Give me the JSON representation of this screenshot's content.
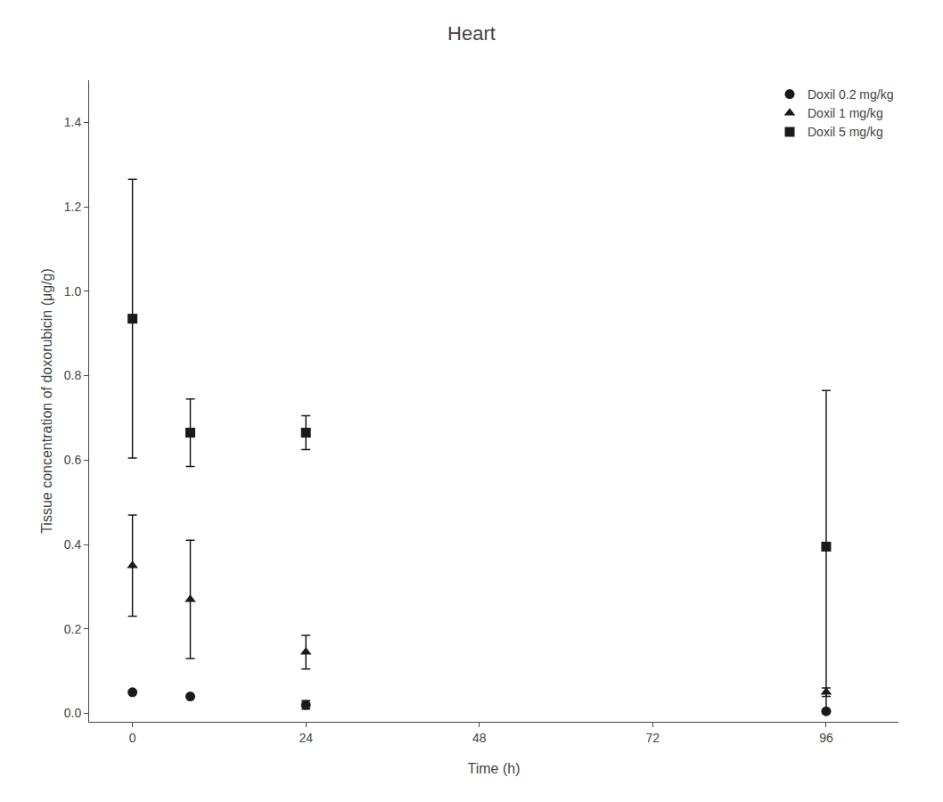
{
  "chart_data": {
    "type": "scatter",
    "title": "Heart",
    "xlabel": "Time (h)",
    "ylabel": "Tissue concentration of doxorubicin (μg/g)",
    "xlim": [
      -6,
      106
    ],
    "ylim": [
      -0.02,
      1.5
    ],
    "xticks": [
      0,
      24,
      48,
      72,
      96
    ],
    "yticks": [
      {
        "value": 0.0,
        "label": "0.0"
      },
      0.2,
      0.4,
      0.6,
      0.8,
      {
        "value": 1.0,
        "label": "1.0"
      },
      1.2,
      1.4
    ],
    "grid": false,
    "legend": "upper right",
    "color": "#1a1a1a",
    "series": [
      {
        "name": "Doxil 0.2 mg/kg",
        "marker": "circle",
        "x": [
          0,
          8,
          24,
          96
        ],
        "values": [
          0.05,
          0.04,
          0.02,
          0.005
        ],
        "errors_upper": [
          0.0,
          0.0,
          0.01,
          0.0
        ],
        "errors_lower": [
          0.0,
          0.0,
          0.01,
          0.0
        ]
      },
      {
        "name": "Doxil 1 mg/kg",
        "marker": "triangle-up",
        "x": [
          0,
          8,
          24,
          96
        ],
        "values": [
          0.35,
          0.27,
          0.145,
          0.05
        ],
        "errors_upper": [
          0.12,
          0.14,
          0.04,
          0.01
        ],
        "errors_lower": [
          0.12,
          0.14,
          0.04,
          0.01
        ]
      },
      {
        "name": "Doxil 5 mg/kg",
        "marker": "square",
        "x": [
          0,
          8,
          24,
          96
        ],
        "values": [
          0.935,
          0.665,
          0.665,
          0.395
        ],
        "errors_upper": [
          0.33,
          0.08,
          0.04,
          0.37
        ],
        "errors_lower": [
          0.33,
          0.08,
          0.04,
          0.395
        ]
      }
    ]
  }
}
